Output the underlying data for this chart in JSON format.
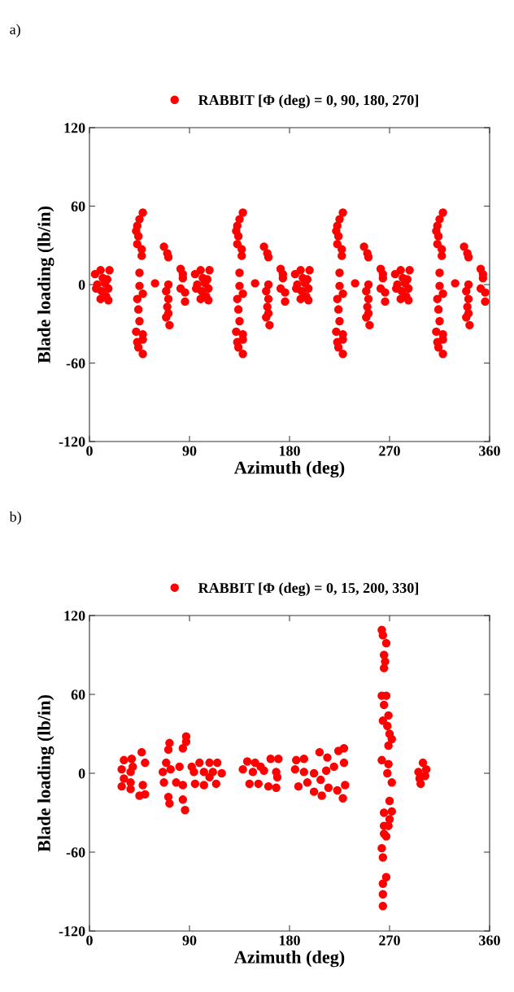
{
  "chart_data": [
    {
      "type": "scatter",
      "annotations": [
        "a)"
      ],
      "xlabel": "Azimuth (deg)",
      "ylabel": "Blade loading (lb/in)",
      "xlim": [
        0,
        360
      ],
      "xticks": [
        0,
        90,
        180,
        270,
        360
      ],
      "ylim": [
        -120,
        120
      ],
      "yticks": [
        -120,
        -60,
        0,
        60,
        120
      ],
      "grid": false,
      "legend": "top",
      "marker": "circle",
      "series": [
        {
          "name": "RABBIT [Φ (deg) = 0, 90, 180, 270]",
          "color": "#ff0000",
          "x": [
            5,
            10,
            12,
            7,
            11,
            15,
            17,
            18,
            6,
            14,
            17,
            10,
            16,
            48,
            45,
            43,
            42,
            44,
            43,
            47,
            47,
            45,
            45,
            43,
            44,
            45,
            42,
            48,
            43,
            48,
            44,
            48,
            48,
            59,
            67,
            70,
            71,
            71,
            69,
            71,
            70,
            71,
            69,
            72,
            82,
            84,
            84,
            82,
            86,
            86,
            95,
            100,
            102,
            97,
            101,
            105,
            107,
            108,
            96,
            104,
            107,
            100,
            106,
            138,
            135,
            133,
            132,
            134,
            133,
            137,
            137,
            135,
            135,
            133,
            134,
            135,
            132,
            138,
            133,
            138,
            134,
            138,
            138,
            149,
            157,
            160,
            161,
            161,
            159,
            161,
            160,
            161,
            159,
            162,
            172,
            174,
            174,
            172,
            176,
            176,
            185,
            190,
            192,
            187,
            191,
            195,
            197,
            198,
            186,
            194,
            197,
            190,
            196,
            228,
            225,
            223,
            222,
            224,
            223,
            227,
            227,
            225,
            225,
            223,
            224,
            225,
            222,
            228,
            223,
            228,
            224,
            228,
            228,
            239,
            247,
            250,
            251,
            251,
            249,
            251,
            250,
            251,
            249,
            252,
            262,
            264,
            264,
            262,
            266,
            266,
            275,
            280,
            282,
            277,
            281,
            285,
            287,
            288,
            276,
            284,
            287,
            280,
            286,
            318,
            315,
            313,
            312,
            314,
            313,
            317,
            317,
            315,
            315,
            313,
            314,
            315,
            312,
            318,
            313,
            318,
            314,
            318,
            318,
            329,
            337,
            340,
            341,
            341,
            339,
            341,
            340,
            341,
            339,
            342,
            352,
            354,
            354,
            352,
            356,
            356
          ],
          "values": [
            8,
            11,
            5,
            0,
            -5,
            -9,
            -12,
            11,
            -3,
            1,
            -3,
            -11,
            4,
            55,
            50,
            45,
            41,
            37,
            31,
            27,
            22,
            9,
            -1,
            -11,
            -19,
            -28,
            -36,
            -38,
            -44,
            -42,
            -48,
            -53,
            -7,
            1,
            29,
            24,
            21,
            0,
            -5,
            -11,
            -17,
            -22,
            -25,
            -31,
            12,
            8,
            5,
            -3,
            -6,
            -13,
            8,
            11,
            5,
            0,
            -5,
            -9,
            -12,
            11,
            -3,
            1,
            -3,
            -11,
            4,
            55,
            50,
            45,
            41,
            37,
            31,
            27,
            22,
            9,
            -1,
            -11,
            -19,
            -28,
            -36,
            -38,
            -44,
            -42,
            -48,
            -53,
            -7,
            1,
            29,
            24,
            21,
            0,
            -5,
            -11,
            -17,
            -22,
            -25,
            -31,
            12,
            8,
            5,
            -3,
            -6,
            -13,
            8,
            11,
            5,
            0,
            -5,
            -9,
            -12,
            11,
            -3,
            1,
            -3,
            -11,
            4,
            55,
            50,
            45,
            41,
            37,
            31,
            27,
            22,
            9,
            -1,
            -11,
            -19,
            -28,
            -36,
            -38,
            -44,
            -42,
            -48,
            -53,
            -7,
            1,
            29,
            24,
            21,
            0,
            -5,
            -11,
            -17,
            -22,
            -25,
            -31,
            12,
            8,
            5,
            -3,
            -6,
            -13,
            8,
            11,
            5,
            0,
            -5,
            -9,
            -12,
            11,
            -3,
            1,
            -3,
            -11,
            4,
            55,
            50,
            45,
            41,
            37,
            31,
            27,
            22,
            9,
            -1,
            -11,
            -19,
            -28,
            -36,
            -38,
            -44,
            -42,
            -48,
            -53,
            -7,
            1,
            29,
            24,
            21,
            0,
            -5,
            -11,
            -17,
            -22,
            -25,
            -31,
            12,
            8,
            5,
            -3,
            -6,
            -13
          ]
        }
      ]
    },
    {
      "type": "scatter",
      "annotations": [
        "b)"
      ],
      "xlabel": "Azimuth (deg)",
      "ylabel": "Blade loading (lb/in)",
      "xlim": [
        0,
        360
      ],
      "xticks": [
        0,
        90,
        180,
        270,
        360
      ],
      "ylim": [
        -120,
        120
      ],
      "yticks": [
        -120,
        -60,
        0,
        60,
        120
      ],
      "grid": false,
      "legend": "top",
      "marker": "circle",
      "series": [
        {
          "name": "RABBIT [Φ (deg) = 0, 15, 200, 330]",
          "color": "#ff0000",
          "x": [
            31,
            38,
            47,
            50,
            29,
            37,
            31,
            37,
            29,
            37,
            48,
            45,
            50,
            39,
            72,
            87,
            84,
            69,
            66,
            67,
            71,
            72,
            84,
            86,
            73,
            81,
            78,
            84,
            71,
            87,
            99,
            108,
            115,
            94,
            103,
            111,
            119,
            95,
            103,
            114,
            108,
            92,
            142,
            149,
            163,
            170,
            138,
            147,
            157,
            168,
            144,
            152,
            161,
            168,
            169,
            154,
            186,
            193,
            207,
            214,
            229,
            224,
            229,
            185,
            193,
            202,
            213,
            220,
            188,
            196,
            202,
            209,
            215,
            223,
            228,
            230,
            208,
            263,
            264,
            267,
            265,
            266,
            265,
            263,
            267,
            265,
            269,
            264,
            268,
            270,
            272,
            269,
            263,
            269,
            268,
            272,
            270,
            272,
            265,
            270,
            265,
            269,
            265,
            267,
            263,
            264,
            267,
            264,
            264,
            264,
            300,
            303,
            296,
            302,
            297,
            298
          ],
          "values": [
            10,
            11,
            16,
            8,
            3,
            1,
            -4,
            -7,
            -10,
            -12,
            -9,
            -17,
            -16,
            5,
            23,
            28,
            19,
            8,
            1,
            -7,
            -18,
            -23,
            -20,
            -28,
            3,
            5,
            -7,
            -9,
            18,
            24,
            8,
            8,
            8,
            1,
            1,
            1,
            0,
            -8,
            -9,
            -8,
            -3,
            5,
            9,
            8,
            11,
            11,
            3,
            1,
            2,
            1,
            -8,
            -8,
            -10,
            -11,
            -3,
            5,
            10,
            11,
            16,
            12,
            19,
            17,
            8,
            3,
            1,
            0,
            2,
            5,
            -10,
            -7,
            -14,
            -17,
            -11,
            -13,
            -19,
            -9,
            -5,
            109,
            105,
            99,
            90,
            85,
            80,
            59,
            59,
            52,
            44,
            40,
            36,
            30,
            26,
            21,
            10,
            7,
            0,
            -7,
            -21,
            -29,
            -30,
            -35,
            -40,
            -40,
            -46,
            -48,
            -57,
            -64,
            -79,
            -84,
            -92,
            -101,
            8,
            3,
            1,
            -2,
            -4,
            -8
          ]
        }
      ]
    }
  ]
}
